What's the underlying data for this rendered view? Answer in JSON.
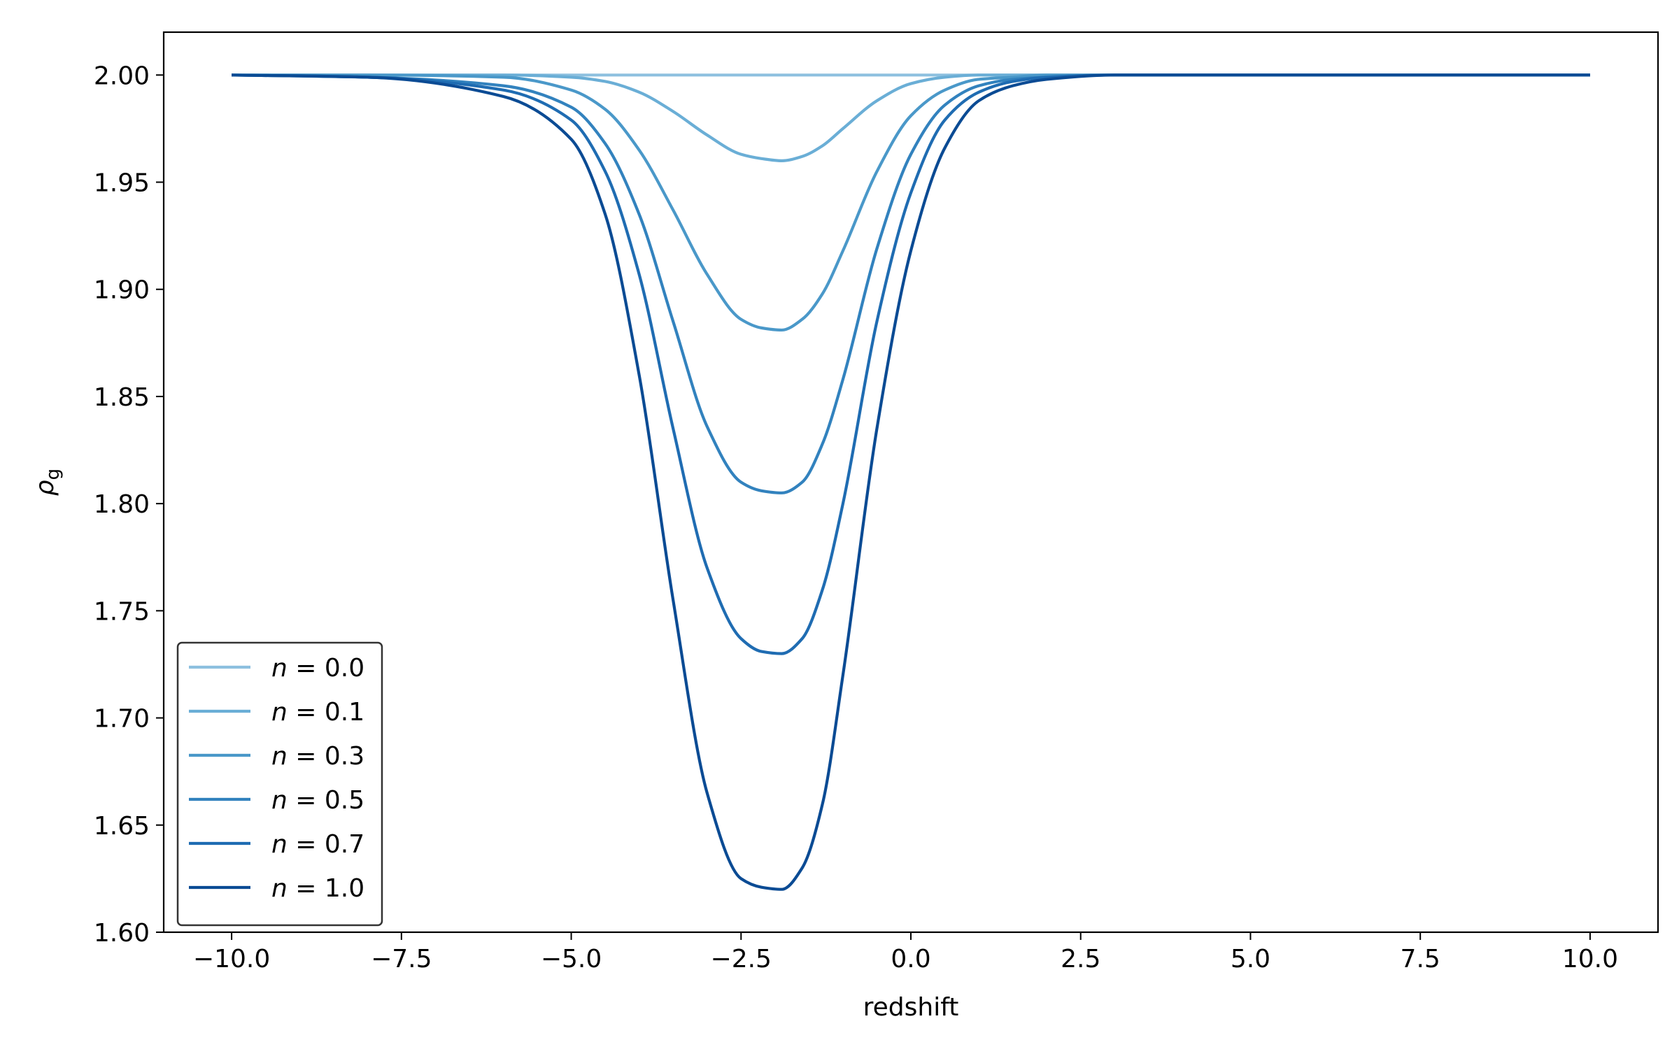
{
  "chart_data": {
    "type": "line",
    "title": "",
    "xlabel": "redshift",
    "ylabel_symbol": "ρ",
    "ylabel_subscript": "g",
    "xlim": [
      -11.0,
      11.0
    ],
    "ylim": [
      1.6,
      2.02
    ],
    "x_ticks": [
      -10.0,
      -7.5,
      -5.0,
      -2.5,
      0.0,
      2.5,
      5.0,
      7.5,
      10.0
    ],
    "x_tick_labels": [
      "−10.0",
      "−7.5",
      "−5.0",
      "−2.5",
      "0.0",
      "2.5",
      "5.0",
      "7.5",
      "10.0"
    ],
    "y_ticks": [
      1.6,
      1.65,
      1.7,
      1.75,
      1.8,
      1.85,
      1.9,
      1.95,
      2.0
    ],
    "y_tick_labels": [
      "1.60",
      "1.65",
      "1.70",
      "1.75",
      "1.80",
      "1.85",
      "1.90",
      "1.95",
      "2.00"
    ],
    "grid": false,
    "legend_position": "lower-left",
    "x": [
      -10.0,
      -8.0,
      -6.0,
      -5.0,
      -4.5,
      -4.0,
      -3.5,
      -3.0,
      -2.5,
      -2.2,
      -1.9,
      -1.6,
      -1.3,
      -1.0,
      -0.5,
      0.0,
      0.5,
      1.0,
      1.5,
      2.0,
      3.0,
      4.0,
      6.0,
      8.0,
      10.0
    ],
    "series": [
      {
        "label_var": "n",
        "label_value": "0.0",
        "color": "#8dc0df",
        "values": [
          2.0,
          2.0,
          2.0,
          2.0,
          2.0,
          2.0,
          2.0,
          2.0,
          2.0,
          2.0,
          2.0,
          2.0,
          2.0,
          2.0,
          2.0,
          2.0,
          2.0,
          2.0,
          2.0,
          2.0,
          2.0,
          2.0,
          2.0,
          2.0,
          2.0
        ]
      },
      {
        "label_var": "n",
        "label_value": "0.1",
        "color": "#6aaed6",
        "values": [
          2.0,
          2.0,
          2.0,
          1.999,
          1.997,
          1.992,
          1.983,
          1.972,
          1.963,
          1.961,
          1.96,
          1.962,
          1.967,
          1.975,
          1.988,
          1.996,
          1.999,
          2.0,
          2.0,
          2.0,
          2.0,
          2.0,
          2.0,
          2.0,
          2.0
        ]
      },
      {
        "label_var": "n",
        "label_value": "0.3",
        "color": "#4a98c9",
        "values": [
          2.0,
          2.0,
          1.999,
          1.993,
          1.984,
          1.965,
          1.937,
          1.907,
          1.886,
          1.882,
          1.881,
          1.886,
          1.898,
          1.918,
          1.955,
          1.981,
          1.993,
          1.998,
          1.999,
          2.0,
          2.0,
          2.0,
          2.0,
          2.0,
          2.0
        ]
      },
      {
        "label_var": "n",
        "label_value": "0.5",
        "color": "#3282be",
        "values": [
          2.0,
          1.999,
          1.995,
          1.985,
          1.968,
          1.935,
          1.885,
          1.836,
          1.81,
          1.806,
          1.805,
          1.81,
          1.828,
          1.858,
          1.919,
          1.963,
          1.986,
          1.995,
          1.998,
          1.999,
          2.0,
          2.0,
          2.0,
          2.0,
          2.0
        ]
      },
      {
        "label_var": "n",
        "label_value": "0.7",
        "color": "#1f6cb2",
        "values": [
          2.0,
          1.999,
          1.993,
          1.979,
          1.955,
          1.907,
          1.835,
          1.77,
          1.737,
          1.731,
          1.73,
          1.737,
          1.76,
          1.8,
          1.885,
          1.945,
          1.979,
          1.992,
          1.997,
          1.999,
          2.0,
          2.0,
          2.0,
          2.0,
          2.0
        ]
      },
      {
        "label_var": "n",
        "label_value": "1.0",
        "color": "#0b4b94",
        "values": [
          2.0,
          1.999,
          1.99,
          1.97,
          1.935,
          1.86,
          1.755,
          1.665,
          1.625,
          1.621,
          1.62,
          1.63,
          1.66,
          1.72,
          1.835,
          1.918,
          1.966,
          1.988,
          1.995,
          1.998,
          2.0,
          2.0,
          2.0,
          2.0,
          2.0
        ]
      }
    ]
  }
}
